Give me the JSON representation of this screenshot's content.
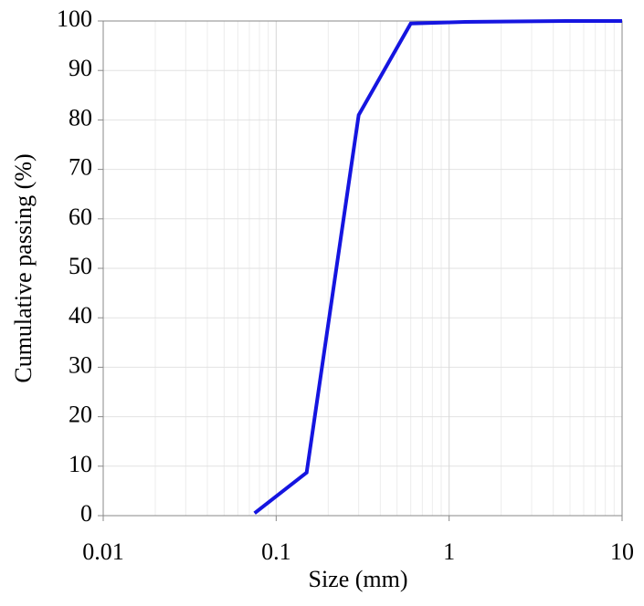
{
  "chart_data": {
    "type": "line",
    "x_label": "Size (mm)",
    "y_label": "Cumulative passing (%)",
    "x": [
      0.075,
      0.15,
      0.3,
      0.6,
      1.18,
      2.36,
      4.75,
      10
    ],
    "series": [
      {
        "name": "Cumulative passing",
        "color": "#1515e0",
        "values": [
          0.5,
          8.7,
          81,
          99.5,
          99.8,
          99.9,
          100,
          100
        ]
      }
    ],
    "xscale": "log",
    "xlim": [
      0.01,
      10
    ],
    "xticks": [
      0.01,
      0.1,
      1,
      10
    ],
    "ylim": [
      0,
      100
    ],
    "yticks": [
      0,
      10,
      20,
      30,
      40,
      50,
      60,
      70,
      80,
      90,
      100
    ],
    "grid": true,
    "minor_grid": true,
    "legend": false
  }
}
